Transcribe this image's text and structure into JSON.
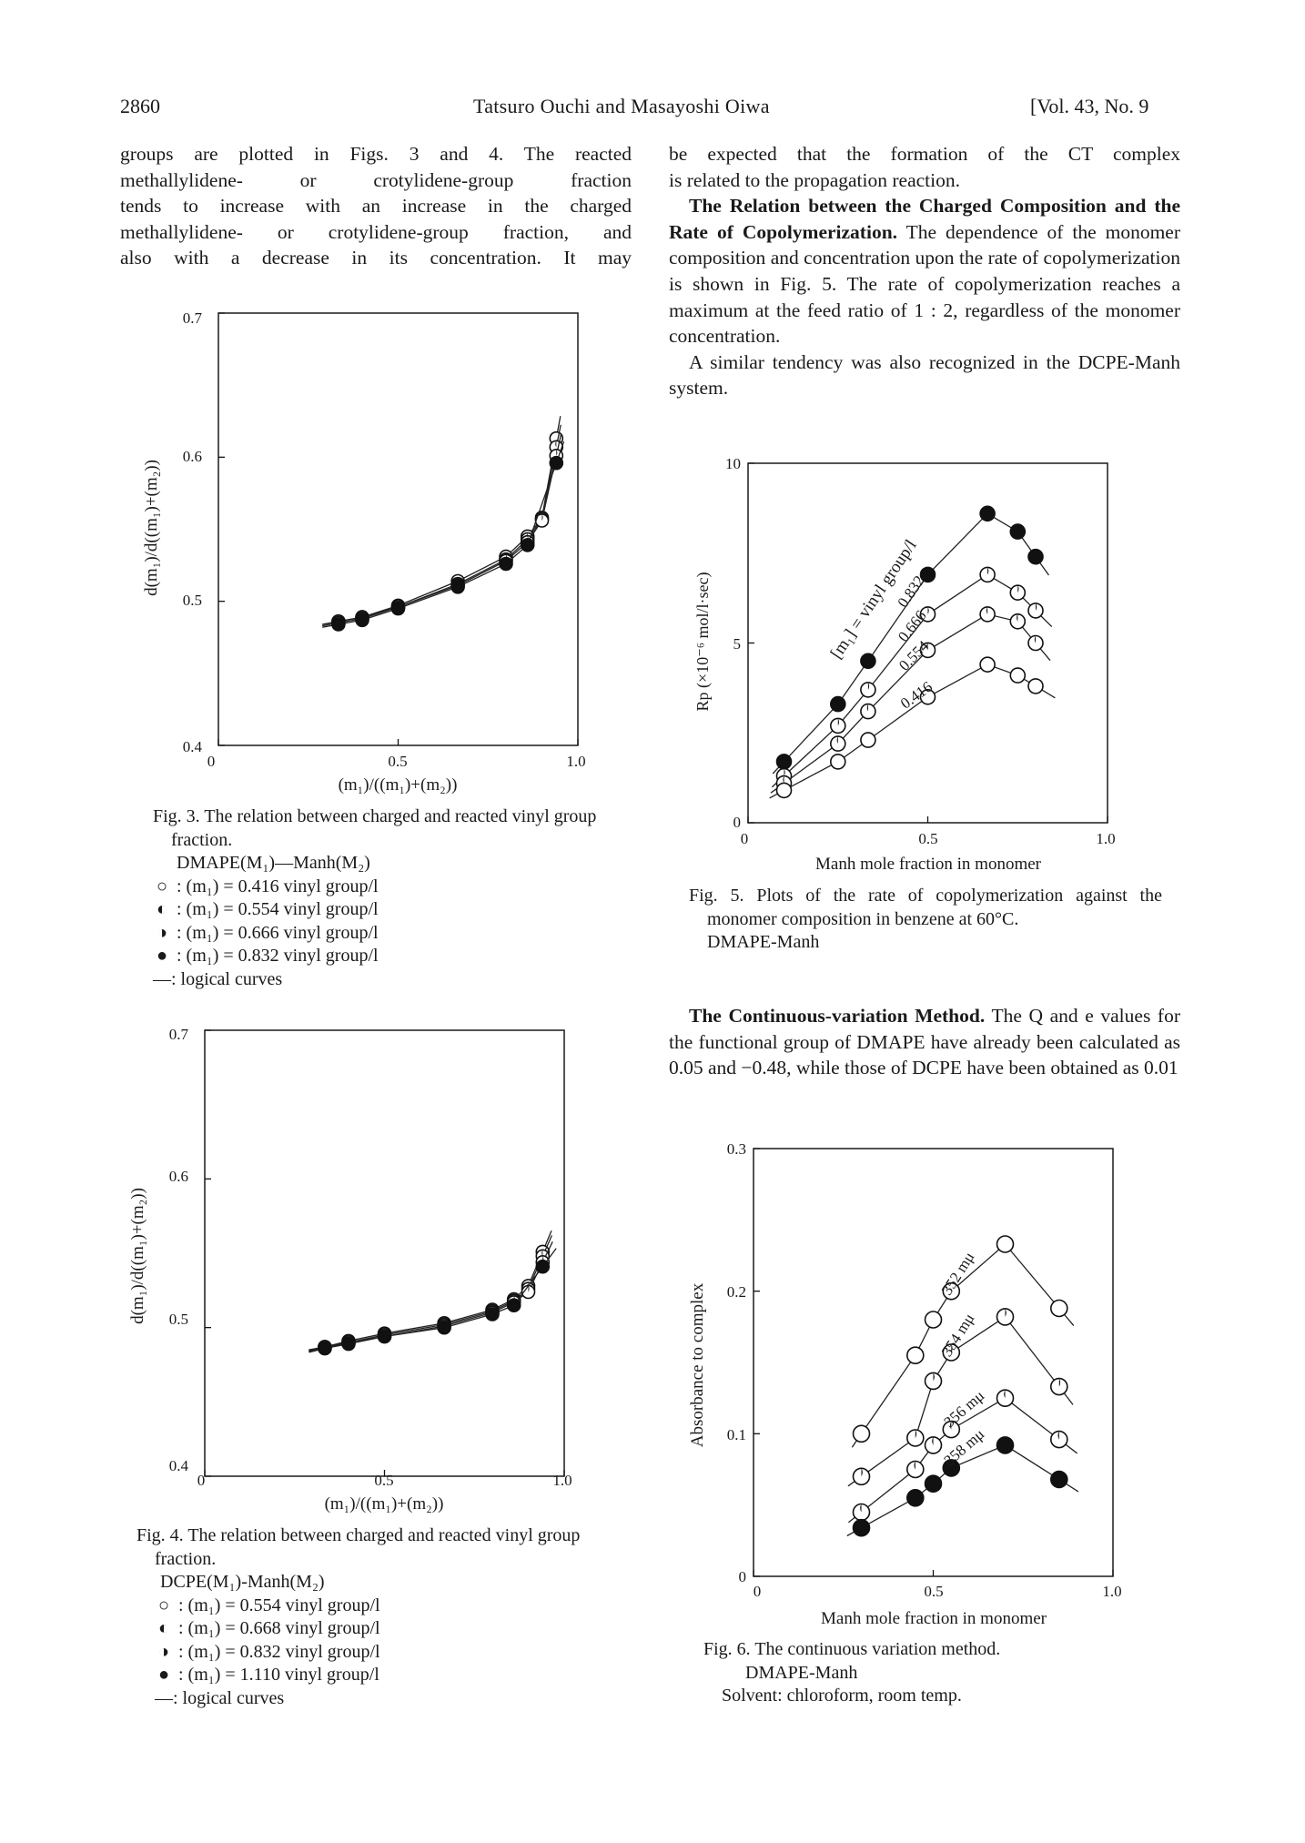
{
  "header": {
    "page_number": "2860",
    "authors": "Tatsuro Ouchi and Masayoshi Oiwa",
    "volume": "[Vol. 43, No. 9"
  },
  "left_text": [
    "groups are plotted in Figs. 3 and 4. The reacted",
    "methallylidene- or crotylidene-group fraction",
    "tends to increase with an increase in the charged",
    "methallylidene- or crotylidene-group fraction, and",
    "also with a decrease in its concentration. It may"
  ],
  "right_text": [
    "be expected that the formation of the CT complex",
    "is related to the propagation reaction."
  ],
  "section1": {
    "heading": "The Relation between the Charged Composition and the Rate of Copolymerization.",
    "body": "The dependence of the monomer composition and concentration upon the rate of copolymerization is shown in Fig. 5. The rate of copolymerization reaches a maximum at the feed ratio of 1 : 2, regardless of the monomer concentration.",
    "para2": "A similar tendency was also recognized in the DCPE-Manh system."
  },
  "section2": {
    "heading": "The Continuous-variation Method.",
    "body": "The Q and e values for the functional group of DMAPE have already been calculated as 0.05 and −0.48, while those of DCPE have been obtained as 0.01"
  },
  "fig3": {
    "caption": "Fig. 3. The relation between charged and reacted vinyl group fraction.",
    "system": "DMAPE(M₁)—Manh(M₂)",
    "legend": [
      {
        "symbol": "open-circle-icon",
        "text": ": (m₁) = 0.416 vinyl group/l"
      },
      {
        "symbol": "left-half-circle-icon",
        "text": ": (m₁) = 0.554 vinyl group/l"
      },
      {
        "symbol": "right-half-circle-icon",
        "text": ": (m₁) = 0.666 vinyl group/l"
      },
      {
        "symbol": "filled-circle-icon",
        "text": ": (m₁) = 0.832 vinyl group/l"
      },
      {
        "symbol": "dash",
        "text": "—: logical curves"
      }
    ]
  },
  "fig4": {
    "caption": "Fig. 4. The relation between charged and reacted vinyl group fraction.",
    "system": "DCPE(M₁)-Manh(M₂)",
    "legend": [
      {
        "symbol": "open-circle-icon",
        "text": ": (m₁) = 0.554 vinyl group/l"
      },
      {
        "symbol": "left-half-circle-icon",
        "text": ": (m₁) = 0.668 vinyl group/l"
      },
      {
        "symbol": "right-half-circle-icon",
        "text": ": (m₁) = 0.832 vinyl group/l"
      },
      {
        "symbol": "filled-circle-icon",
        "text": ": (m₁) = 1.110 vinyl group/l"
      },
      {
        "symbol": "dash",
        "text": "—: logical curves"
      }
    ]
  },
  "fig5": {
    "caption": "Fig. 5. Plots of the rate of copolymerization against the monomer composition in benzene at 60°C.",
    "system": "DMAPE-Manh",
    "annotation": "[m₁] = vinyl group/l"
  },
  "fig6": {
    "caption": "Fig. 6. The continuous variation method.",
    "system": "DMAPE-Manh",
    "solvent": "Solvent: chloroform, room temp."
  },
  "chart_data": [
    {
      "id": "fig3",
      "type": "scatter",
      "xlabel": "(m₁)/((m₁)+(m₂))",
      "ylabel": "d(m₁)/d((m₁)+(m₂))",
      "xlim": [
        0,
        1.0
      ],
      "ylim": [
        0.4,
        0.7
      ],
      "xticks": [
        "0",
        "0.5",
        "1.0"
      ],
      "yticks": [
        "0.4",
        "0.5",
        "0.6",
        "0.7"
      ],
      "series": [
        {
          "marker": "open",
          "x": [
            0.334,
            0.4,
            0.5,
            0.666,
            0.8,
            0.86,
            0.9,
            0.94
          ],
          "y": [
            0.486,
            0.489,
            0.497,
            0.514,
            0.531,
            0.545,
            0.558,
            0.613
          ]
        },
        {
          "marker": "left-half",
          "x": [
            0.334,
            0.4,
            0.5,
            0.666,
            0.8,
            0.86,
            0.9,
            0.94
          ],
          "y": [
            0.486,
            0.489,
            0.496,
            0.512,
            0.529,
            0.543,
            0.557,
            0.607
          ]
        },
        {
          "marker": "right-half",
          "x": [
            0.334,
            0.4,
            0.5,
            0.666,
            0.8,
            0.86,
            0.9,
            0.94
          ],
          "y": [
            0.485,
            0.488,
            0.496,
            0.511,
            0.528,
            0.541,
            0.556,
            0.601
          ]
        },
        {
          "marker": "filled",
          "x": [
            0.334,
            0.4,
            0.5,
            0.666,
            0.8,
            0.86,
            0.94
          ],
          "y": [
            0.484,
            0.487,
            0.495,
            0.51,
            0.526,
            0.539,
            0.596
          ]
        }
      ]
    },
    {
      "id": "fig4",
      "type": "scatter",
      "xlabel": "(m₁)/((m₁)+(m₂))",
      "ylabel": "d(m₁)/d((m₁)+(m₂))",
      "xlim": [
        0,
        1.0
      ],
      "ylim": [
        0.4,
        0.7
      ],
      "xticks": [
        "0",
        "0.5",
        "1.0"
      ],
      "yticks": [
        "0.4",
        "0.5",
        "0.6",
        "0.7"
      ],
      "series": [
        {
          "marker": "open",
          "x": [
            0.334,
            0.4,
            0.5,
            0.666,
            0.8,
            0.86,
            0.9,
            0.94
          ],
          "y": [
            0.487,
            0.491,
            0.496,
            0.503,
            0.512,
            0.519,
            0.528,
            0.551
          ]
        },
        {
          "marker": "left-half",
          "x": [
            0.334,
            0.4,
            0.5,
            0.666,
            0.8,
            0.86,
            0.9,
            0.94
          ],
          "y": [
            0.487,
            0.49,
            0.495,
            0.502,
            0.511,
            0.518,
            0.526,
            0.548
          ]
        },
        {
          "marker": "right-half",
          "x": [
            0.334,
            0.4,
            0.5,
            0.666,
            0.8,
            0.86,
            0.9,
            0.94
          ],
          "y": [
            0.486,
            0.49,
            0.494,
            0.501,
            0.51,
            0.517,
            0.524,
            0.544
          ]
        },
        {
          "marker": "filled",
          "x": [
            0.334,
            0.4,
            0.5,
            0.666,
            0.8,
            0.86,
            0.94
          ],
          "y": [
            0.486,
            0.489,
            0.494,
            0.5,
            0.509,
            0.515,
            0.541
          ]
        }
      ]
    },
    {
      "id": "fig5",
      "type": "scatter",
      "xlabel": "Manh mole fraction in monomer",
      "ylabel": "Rp (×10⁻⁶ mol/l·sec)",
      "xlim": [
        0,
        1.0
      ],
      "ylim": [
        0,
        10
      ],
      "xticks": [
        "0",
        "0.5",
        "1.0"
      ],
      "yticks": [
        "0",
        "5",
        "10"
      ],
      "series": [
        {
          "name": "0.832",
          "marker": "filled",
          "x": [
            0.1,
            0.25,
            0.334,
            0.5,
            0.666,
            0.75,
            0.8
          ],
          "y": [
            1.7,
            3.3,
            4.5,
            6.9,
            8.6,
            8.1,
            7.4
          ]
        },
        {
          "name": "0.666",
          "marker": "right-half",
          "x": [
            0.1,
            0.25,
            0.334,
            0.5,
            0.666,
            0.75,
            0.8
          ],
          "y": [
            1.3,
            2.7,
            3.7,
            5.8,
            6.9,
            6.4,
            5.9
          ]
        },
        {
          "name": "0.554",
          "marker": "left-half",
          "x": [
            0.1,
            0.25,
            0.334,
            0.5,
            0.666,
            0.75,
            0.8
          ],
          "y": [
            1.1,
            2.2,
            3.1,
            4.8,
            5.8,
            5.6,
            5.0
          ]
        },
        {
          "name": "0.416",
          "marker": "open",
          "x": [
            0.1,
            0.25,
            0.334,
            0.5,
            0.666,
            0.75,
            0.8
          ],
          "y": [
            0.9,
            1.7,
            2.3,
            3.5,
            4.4,
            4.1,
            3.8
          ]
        }
      ]
    },
    {
      "id": "fig6",
      "type": "scatter",
      "xlabel": "Manh mole fraction in monomer",
      "ylabel": "Absorbance to complex",
      "xlim": [
        0,
        1.0
      ],
      "ylim": [
        0,
        0.3
      ],
      "xticks": [
        "0",
        "0.5",
        "1.0"
      ],
      "yticks": [
        "0",
        "0.1",
        "0.2",
        "0.3"
      ],
      "series": [
        {
          "name": "352 mμ",
          "marker": "open",
          "x": [
            0.3,
            0.45,
            0.5,
            0.55,
            0.7,
            0.85
          ],
          "y": [
            0.1,
            0.155,
            0.18,
            0.2,
            0.233,
            0.188
          ]
        },
        {
          "name": "354 mμ",
          "marker": "right-half",
          "x": [
            0.3,
            0.45,
            0.5,
            0.55,
            0.7,
            0.85
          ],
          "y": [
            0.07,
            0.097,
            0.137,
            0.157,
            0.182,
            0.133
          ]
        },
        {
          "name": "356 mμ",
          "marker": "left-half",
          "x": [
            0.3,
            0.45,
            0.5,
            0.55,
            0.7,
            0.85
          ],
          "y": [
            0.045,
            0.075,
            0.092,
            0.103,
            0.125,
            0.096
          ]
        },
        {
          "name": "358 mμ",
          "marker": "filled",
          "x": [
            0.3,
            0.45,
            0.5,
            0.55,
            0.7,
            0.85
          ],
          "y": [
            0.034,
            0.055,
            0.065,
            0.076,
            0.092,
            0.068
          ]
        }
      ]
    }
  ]
}
